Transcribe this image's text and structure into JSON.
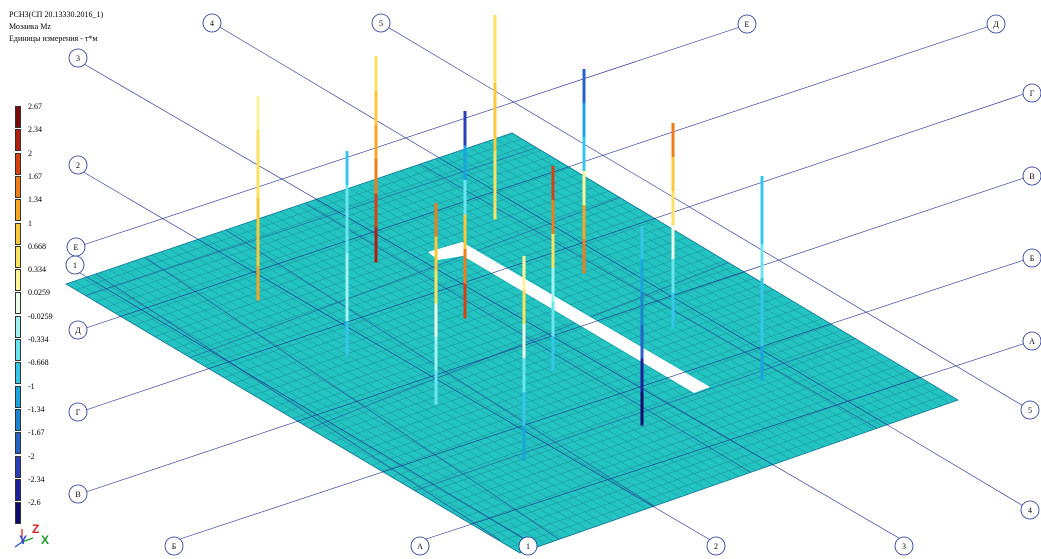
{
  "header": {
    "line1": "РСН3(СП 20.13330.2016_1)",
    "line2": "Мозаика Mz",
    "line3": "Единицы измерения - т*м"
  },
  "legend": [
    {
      "value": "2.67",
      "color": "#7a0a0a"
    },
    {
      "value": "2.34",
      "color": "#b0200e"
    },
    {
      "value": "2",
      "color": "#d9420f"
    },
    {
      "value": "1.67",
      "color": "#f07d18"
    },
    {
      "value": "1.34",
      "color": "#f6a623"
    },
    {
      "value": "1",
      "color": "#f9c93a"
    },
    {
      "value": "0.668",
      "color": "#fbe260"
    },
    {
      "value": "0.334",
      "color": "#fdf39a"
    },
    {
      "value": "0.0259",
      "color": "#ecfbe8"
    },
    {
      "value": "-0.0259",
      "color": "#9ff2f2"
    },
    {
      "value": "-0.334",
      "color": "#6ae4f0"
    },
    {
      "value": "-0.668",
      "color": "#35c6ea"
    },
    {
      "value": "-1",
      "color": "#1aa5de"
    },
    {
      "value": "-1.34",
      "color": "#1d84cf"
    },
    {
      "value": "-1.67",
      "color": "#2663c8"
    },
    {
      "value": "-2",
      "color": "#2a40bb"
    },
    {
      "value": "-2.34",
      "color": "#1d1f9c"
    },
    {
      "value": "-2.6",
      "color": "#0b0b6e"
    }
  ],
  "plate_color": "#22c3c0",
  "column_lines": [
    "1",
    "2",
    "3",
    "4",
    "5"
  ],
  "row_lines": [
    "А",
    "Б",
    "В",
    "Г",
    "Д",
    "Е"
  ],
  "axis_triad": {
    "x": "X",
    "y": "Y",
    "z": "Z"
  }
}
